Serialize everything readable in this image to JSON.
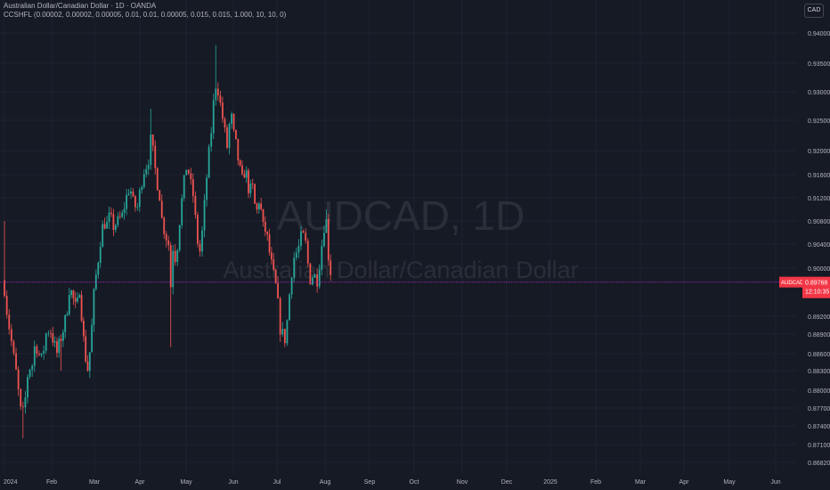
{
  "chart_data": {
    "type": "candlestick",
    "title": "Australian Dollar/Canadian Dollar · 1D · OANDA",
    "indicator": "CCSHFL (0.00002, 0.00002, 0.00005, 0.01, 0.01, 0.00005, 0.015, 0.015, 1.000, 10, 10, 0)",
    "watermark_symbol": "AUDCAD, 1D",
    "watermark_name": "Australian Dollar/Canadian Dollar",
    "currency": "CAD",
    "price": {
      "symbol": "AUDCAD",
      "last": "0.89768",
      "countdown": "12:10:35"
    },
    "y_ticks": [
      "0.94000",
      "0.93500",
      "0.93000",
      "0.92500",
      "0.92000",
      "0.91600",
      "0.91200",
      "0.90800",
      "0.90400",
      "0.90000",
      "0.89200",
      "0.88900",
      "0.88600",
      "0.88300",
      "0.88000",
      "0.87700",
      "0.87400",
      "0.87100",
      "0.86820"
    ],
    "x_ticks": [
      "2024",
      "Feb",
      "Mar",
      "Apr",
      "May",
      "Jun",
      "Jul",
      "Aug",
      "Sep",
      "Oct",
      "Nov",
      "Dec",
      "2025",
      "Feb",
      "Mar",
      "Apr",
      "May",
      "Jun"
    ],
    "series": [
      {
        "values": [
          [
            0.0,
            0.902
          ],
          [
            0.0,
            0.898
          ],
          [
            0.08,
            0.892
          ],
          [
            0.16,
            0.888
          ],
          [
            0.24,
            0.884
          ],
          [
            0.32,
            0.879
          ],
          [
            0.38,
            0.875
          ],
          [
            0.46,
            0.879
          ],
          [
            0.52,
            0.884
          ],
          [
            0.58,
            0.883
          ],
          [
            0.66,
            0.888
          ],
          [
            0.72,
            0.886
          ],
          [
            0.8,
            0.885
          ],
          [
            0.88,
            0.889
          ],
          [
            0.96,
            0.89
          ],
          [
            1.04,
            0.888
          ],
          [
            1.12,
            0.886
          ],
          [
            1.2,
            0.888
          ],
          [
            1.28,
            0.89
          ],
          [
            1.36,
            0.893
          ],
          [
            1.42,
            0.897
          ],
          [
            1.5,
            0.895
          ],
          [
            1.58,
            0.893
          ],
          [
            1.66,
            0.897
          ],
          [
            1.72,
            0.89
          ],
          [
            1.78,
            0.886
          ],
          [
            1.84,
            0.883
          ],
          [
            1.92,
            0.888
          ],
          [
            2.0,
            0.897
          ],
          [
            2.06,
            0.9
          ],
          [
            2.14,
            0.905
          ],
          [
            2.2,
            0.908
          ],
          [
            2.26,
            0.907
          ],
          [
            2.34,
            0.909
          ],
          [
            2.42,
            0.907
          ],
          [
            2.52,
            0.908
          ],
          [
            2.62,
            0.909
          ],
          [
            2.7,
            0.912
          ],
          [
            2.78,
            0.914
          ],
          [
            2.86,
            0.911
          ],
          [
            2.94,
            0.91
          ],
          [
            3.02,
            0.914
          ],
          [
            3.1,
            0.917
          ],
          [
            3.18,
            0.918
          ],
          [
            3.24,
            0.922
          ],
          [
            3.3,
            0.919
          ],
          [
            3.36,
            0.915
          ],
          [
            3.42,
            0.913
          ],
          [
            3.48,
            0.908
          ],
          [
            3.54,
            0.906
          ],
          [
            3.62,
            0.904
          ],
          [
            3.66,
            0.896
          ],
          [
            3.72,
            0.904
          ],
          [
            3.78,
            0.901
          ],
          [
            3.86,
            0.908
          ],
          [
            3.94,
            0.914
          ],
          [
            4.02,
            0.918
          ],
          [
            4.08,
            0.915
          ],
          [
            4.16,
            0.912
          ],
          [
            4.22,
            0.906
          ],
          [
            4.28,
            0.902
          ],
          [
            4.34,
            0.906
          ],
          [
            4.4,
            0.912
          ],
          [
            4.46,
            0.918
          ],
          [
            4.52,
            0.922
          ],
          [
            4.58,
            0.928
          ],
          [
            4.64,
            0.932
          ],
          [
            4.7,
            0.929
          ],
          [
            4.76,
            0.926
          ],
          [
            4.82,
            0.923
          ],
          [
            4.88,
            0.92
          ],
          [
            4.94,
            0.927
          ],
          [
            5.0,
            0.923
          ],
          [
            5.06,
            0.921
          ],
          [
            5.12,
            0.918
          ],
          [
            5.2,
            0.915
          ],
          [
            5.28,
            0.917
          ],
          [
            5.36,
            0.913
          ],
          [
            5.44,
            0.914
          ],
          [
            5.52,
            0.909
          ],
          [
            5.6,
            0.912
          ],
          [
            5.68,
            0.907
          ],
          [
            5.76,
            0.906
          ],
          [
            5.84,
            0.902
          ],
          [
            5.92,
            0.899
          ],
          [
            6.0,
            0.896
          ],
          [
            6.06,
            0.89
          ],
          [
            6.12,
            0.889
          ],
          [
            6.18,
            0.888
          ],
          [
            6.24,
            0.894
          ],
          [
            6.3,
            0.899
          ],
          [
            6.36,
            0.902
          ],
          [
            6.44,
            0.903
          ],
          [
            6.52,
            0.906
          ],
          [
            6.6,
            0.904
          ],
          [
            6.68,
            0.898
          ],
          [
            6.76,
            0.899
          ],
          [
            6.84,
            0.898
          ],
          [
            6.92,
            0.903
          ],
          [
            6.96,
            0.906
          ],
          [
            7.02,
            0.909
          ],
          [
            7.06,
            0.904
          ],
          [
            7.1,
            0.899
          ],
          [
            7.16,
            0.9
          ]
        ]
      },
      {
        "values": [
          [
            0.0,
            0.908
          ],
          [
            0.0,
            0.896
          ],
          [
            0.38,
            0.872
          ],
          [
            1.2,
            0.883
          ],
          [
            1.78,
            0.886
          ],
          [
            2.34,
            0.91
          ],
          [
            3.24,
            0.927
          ],
          [
            3.66,
            0.887
          ],
          [
            4.64,
            0.938
          ],
          [
            5.84,
            0.906
          ],
          [
            6.18,
            0.887
          ],
          [
            7.02,
            0.91
          ],
          [
            7.16,
            0.897
          ]
        ]
      }
    ]
  }
}
